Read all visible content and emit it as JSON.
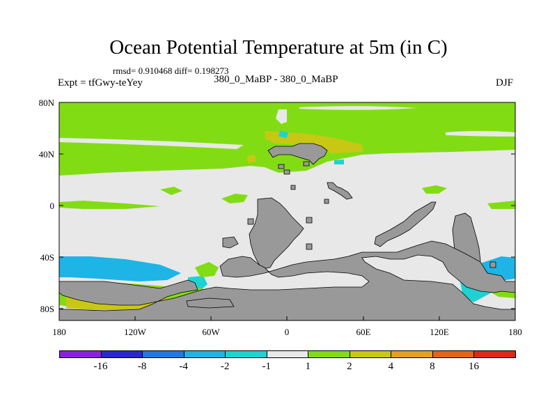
{
  "title": "Ocean Potential Temperature at 5m (in C)",
  "stats": "rmsd= 0.910468 diff= 0.198273",
  "expt": "Expt = tfGwy-teYey",
  "runs": "380_0_MaBP - 380_0_MaBP",
  "season": "DJF",
  "chart_data": {
    "type": "map",
    "y_ticks": [
      "80N",
      "40N",
      "0",
      "40S",
      "80S"
    ],
    "x_ticks": [
      "180",
      "120W",
      "60W",
      "0",
      "60E",
      "120E",
      "180"
    ],
    "colorbar": {
      "labels": [
        "-16",
        "-8",
        "-4",
        "-2",
        "-1",
        "1",
        "2",
        "4",
        "8",
        "16"
      ],
      "colors": [
        "#8c1ee6",
        "#2828d2",
        "#1e78e6",
        "#1eb4e6",
        "#1ed2d2",
        "#e8e8e8",
        "#82dc14",
        "#c8c814",
        "#e6a01e",
        "#e66414",
        "#dc2814"
      ]
    },
    "colors": {
      "land": "#999999",
      "band_2_4": "#c8c814",
      "band_1_2": "#82dc14",
      "band_-1_1": "#e8e8e8",
      "band_-2_-1": "#1ed2d2",
      "band_-4_-2": "#1eb4e6"
    }
  }
}
